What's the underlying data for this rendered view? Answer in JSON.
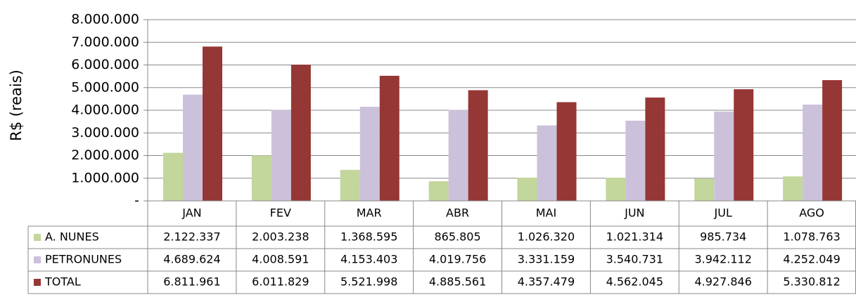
{
  "chart_data": {
    "type": "bar",
    "y_label": "R$ (reais)",
    "categories": [
      "JAN",
      "FEV",
      "MAR",
      "ABR",
      "MAI",
      "JUN",
      "JUL",
      "AGO"
    ],
    "series": [
      {
        "name": "A. NUNES",
        "color": "#c3d69b",
        "values": [
          2122337,
          2003238,
          1368595,
          865805,
          1026320,
          1021314,
          985734,
          1078763
        ],
        "value_labels": [
          "2.122.337",
          "2.003.238",
          "1.368.595",
          "865.805",
          "1.026.320",
          "1.021.314",
          "985.734",
          "1.078.763"
        ]
      },
      {
        "name": "PETRONUNES",
        "color": "#ccc1da",
        "values": [
          4689624,
          4008591,
          4153403,
          4019756,
          3331159,
          3540731,
          3942112,
          4252049
        ],
        "value_labels": [
          "4.689.624",
          "4.008.591",
          "4.153.403",
          "4.019.756",
          "3.331.159",
          "3.540.731",
          "3.942.112",
          "4.252.049"
        ]
      },
      {
        "name": "TOTAL",
        "color": "#953735",
        "values": [
          6811961,
          6011829,
          5521998,
          4885561,
          4357479,
          4562045,
          4927846,
          5330812
        ],
        "value_labels": [
          "6.811.961",
          "6.011.829",
          "5.521.998",
          "4.885.561",
          "4.357.479",
          "4.562.045",
          "4.927.846",
          "5.330.812"
        ]
      }
    ],
    "ylim": [
      0,
      8000000
    ],
    "yticks": [
      {
        "value": 0,
        "label": "-"
      },
      {
        "value": 1000000,
        "label": "1.000.000"
      },
      {
        "value": 2000000,
        "label": "2.000.000"
      },
      {
        "value": 3000000,
        "label": "3.000.000"
      },
      {
        "value": 4000000,
        "label": "4.000.000"
      },
      {
        "value": 5000000,
        "label": "5.000.000"
      },
      {
        "value": 6000000,
        "label": "6.000.000"
      },
      {
        "value": 7000000,
        "label": "7.000.000"
      },
      {
        "value": 8000000,
        "label": "8.000.000"
      }
    ],
    "grid": true
  }
}
